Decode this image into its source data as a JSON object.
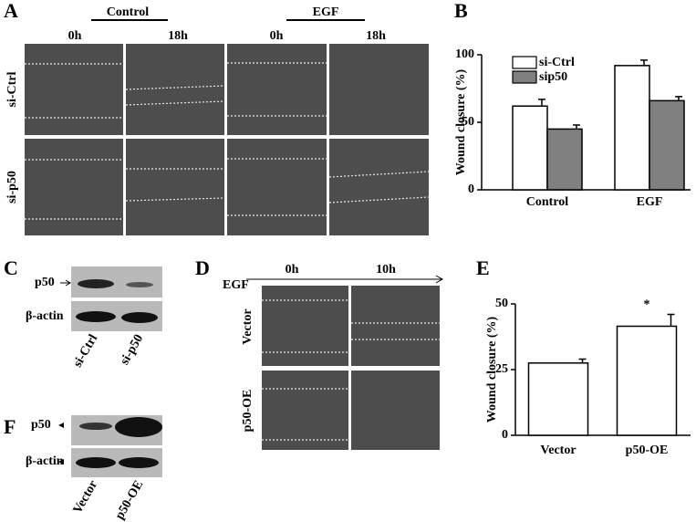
{
  "panels": {
    "A": {
      "label": "A",
      "groups": [
        "Control",
        "EGF"
      ],
      "times": [
        "0h",
        "18h",
        "0h",
        "18h"
      ],
      "rows": [
        "si-Ctrl",
        "si-p50"
      ]
    },
    "C": {
      "label": "C",
      "bands": [
        "p50",
        "β-actin"
      ],
      "lanes": [
        "si-Ctrl",
        "si-p50"
      ]
    },
    "D": {
      "label": "D",
      "treatment": "EGF",
      "times": [
        "0h",
        "10h"
      ],
      "rows": [
        "Vector",
        "p50-OE"
      ]
    },
    "F": {
      "label": "F",
      "bands": [
        "p50",
        "β-actin"
      ],
      "lanes": [
        "Vector",
        "p50-OE"
      ]
    }
  },
  "chart_data": [
    {
      "type": "bar",
      "panel_label": "B",
      "y_label": "Wound closure (%)",
      "categories": [
        "Control",
        "EGF"
      ],
      "series": [
        {
          "name": "si-Ctrl",
          "color": "#ffffff",
          "values": [
            62,
            92
          ],
          "errors": [
            5,
            4
          ]
        },
        {
          "name": "sip50",
          "color": "#808080",
          "values": [
            45,
            66
          ],
          "errors": [
            3,
            3
          ]
        }
      ],
      "ylim": [
        0,
        100
      ],
      "yticks": [
        0,
        50,
        100
      ],
      "legend": "top-left"
    },
    {
      "type": "bar",
      "panel_label": "E",
      "y_label": "Wound closure (%)",
      "categories": [
        "Vector",
        "p50-OE"
      ],
      "series": [
        {
          "color": "#ffffff",
          "values": [
            27.5,
            41.5
          ],
          "errors": [
            1.5,
            4.5
          ]
        }
      ],
      "annotations": [
        {
          "category": 1,
          "text": "*"
        }
      ],
      "ylim": [
        0,
        50
      ],
      "yticks": [
        0,
        25,
        50
      ]
    }
  ]
}
